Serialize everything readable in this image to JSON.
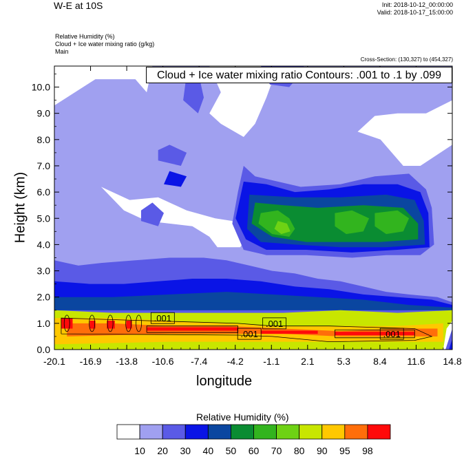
{
  "header": {
    "title": "W-E at 10S",
    "init": "Init: 2018-10-12_00:00:00",
    "valid": "Valid: 2018-10-17_15:00:00",
    "field_lines": [
      "Relative Humidity   (%)",
      "Cloud + Ice water mixing ratio   (g/kg)",
      "Main"
    ],
    "cross_section": "Cross-Section: (130,327) to (454,327)",
    "contour_note": "Cloud + Ice water mixing ratio Contours: .001 to .1 by .099"
  },
  "colors": {
    "palette": [
      "#ffffff",
      "#a0a0f0",
      "#5a5ae6",
      "#0a14e6",
      "#0a46a0",
      "#0a8c32",
      "#32b41e",
      "#6ed214",
      "#c8e600",
      "#ffc800",
      "#ff6e0a",
      "#ff0a0a"
    ],
    "contour": "#000000"
  },
  "chart_data": {
    "type": "heatmap",
    "title": "W-E at 10S",
    "xlabel": "longitude",
    "ylabel": "Height (km)",
    "xlim": [
      -20.1,
      14.8
    ],
    "ylim": [
      0.0,
      10.8
    ],
    "x_ticks": [
      "-20.1",
      "-16.9",
      "-13.8",
      "-10.6",
      "-7.4",
      "-4.2",
      "-1.1",
      "2.1",
      "5.3",
      "8.4",
      "11.6",
      "14.8"
    ],
    "y_ticks": [
      "0.0",
      "1.0",
      "2.0",
      "3.0",
      "4.0",
      "5.0",
      "6.0",
      "7.0",
      "8.0",
      "9.0",
      "10.0"
    ],
    "legend_title": "Relative Humidity  (%)",
    "legend_labels": [
      "10",
      "20",
      "30",
      "40",
      "50",
      "60",
      "70",
      "80",
      "90",
      "95",
      "98"
    ],
    "contour_labels": [
      ".001",
      ".001",
      ".001",
      ".001"
    ],
    "contour_label_positions": [
      [
        -10.6,
        1.2
      ],
      [
        -0.8,
        1.0
      ],
      [
        -3.0,
        0.6
      ],
      [
        9.5,
        0.6
      ]
    ],
    "rh_regions": [
      {
        "level": 1,
        "poly": [
          [
            -20.1,
            1.2
          ],
          [
            14.8,
            1.2
          ],
          [
            14.8,
            10.8
          ],
          [
            -20.1,
            10.8
          ]
        ]
      },
      {
        "level": 0,
        "poly": [
          [
            -20.1,
            9.3
          ],
          [
            -16.5,
            10.3
          ],
          [
            -13.0,
            10.3
          ],
          [
            -12.0,
            9.8
          ],
          [
            -11.5,
            10.8
          ],
          [
            -20.1,
            10.8
          ]
        ]
      },
      {
        "level": 0,
        "poly": [
          [
            -6.5,
            10.8
          ],
          [
            -5.5,
            9.8
          ],
          [
            -6.5,
            9.0
          ],
          [
            -5.5,
            8.6
          ],
          [
            -3.5,
            8.1
          ],
          [
            -2.5,
            8.6
          ],
          [
            -1.5,
            9.6
          ],
          [
            -0.5,
            10.8
          ]
        ]
      },
      {
        "level": 0,
        "poly": [
          [
            6.5,
            8.3
          ],
          [
            8.5,
            8.0
          ],
          [
            9.5,
            7.5
          ],
          [
            10.5,
            7.0
          ],
          [
            12.0,
            7.0
          ],
          [
            14.8,
            7.8
          ],
          [
            14.8,
            9.5
          ],
          [
            12.5,
            9.0
          ],
          [
            10.0,
            9.0
          ],
          [
            8.0,
            8.9
          ]
        ]
      },
      {
        "level": 0,
        "poly": [
          [
            -16.0,
            6.2
          ],
          [
            -13.5,
            5.7
          ],
          [
            -11.0,
            5.8
          ],
          [
            -8.5,
            5.3
          ],
          [
            -6.0,
            5.0
          ],
          [
            -4.5,
            4.9
          ],
          [
            -3.5,
            4.1
          ],
          [
            -3.8,
            3.9
          ],
          [
            -5.8,
            3.9
          ],
          [
            -6.5,
            4.3
          ],
          [
            -8.0,
            4.7
          ],
          [
            -10.0,
            4.8
          ],
          [
            -12.0,
            4.9
          ],
          [
            -14.0,
            5.3
          ]
        ]
      },
      {
        "level": 2,
        "poly": [
          [
            -20.1,
            1.2
          ],
          [
            14.8,
            1.2
          ],
          [
            14.8,
            1.8
          ],
          [
            13.5,
            2.0
          ],
          [
            11.0,
            2.1
          ],
          [
            9.0,
            2.2
          ],
          [
            7.0,
            2.4
          ],
          [
            5.0,
            2.6
          ],
          [
            3.0,
            2.7
          ],
          [
            1.0,
            2.9
          ],
          [
            -1.0,
            3.0
          ],
          [
            -3.0,
            3.2
          ],
          [
            -5.0,
            3.4
          ],
          [
            -7.0,
            3.5
          ],
          [
            -10.0,
            3.5
          ],
          [
            -13.0,
            3.4
          ],
          [
            -16.0,
            3.3
          ],
          [
            -18.0,
            3.2
          ],
          [
            -20.1,
            3.4
          ]
        ]
      },
      {
        "level": 2,
        "poly": [
          [
            -12.5,
            4.9
          ],
          [
            -11.0,
            4.7
          ],
          [
            -10.5,
            5.2
          ],
          [
            -11.5,
            5.6
          ],
          [
            -12.5,
            5.3
          ]
        ]
      },
      {
        "level": 2,
        "poly": [
          [
            -3.5,
            7.0
          ],
          [
            -2.5,
            6.6
          ],
          [
            1.5,
            6.2
          ],
          [
            5.0,
            6.3
          ],
          [
            8.0,
            6.6
          ],
          [
            11.0,
            6.7
          ],
          [
            12.5,
            6.1
          ],
          [
            13.0,
            5.4
          ],
          [
            13.2,
            4.0
          ],
          [
            12.0,
            3.6
          ],
          [
            9.0,
            3.6
          ],
          [
            6.0,
            3.5
          ],
          [
            2.0,
            3.6
          ],
          [
            -1.5,
            3.6
          ],
          [
            -3.5,
            3.8
          ],
          [
            -4.5,
            4.8
          ],
          [
            -4.0,
            6.0
          ]
        ]
      },
      {
        "level": 2,
        "poly": [
          [
            -11.0,
            7.2
          ],
          [
            -9.0,
            7.0
          ],
          [
            -8.5,
            7.5
          ],
          [
            -10.0,
            7.8
          ],
          [
            -11.0,
            7.6
          ]
        ]
      },
      {
        "level": 2,
        "poly": [
          [
            -8.8,
            9.5
          ],
          [
            -7.5,
            9.0
          ],
          [
            -7.0,
            9.6
          ],
          [
            -7.5,
            10.6
          ],
          [
            -8.5,
            10.5
          ]
        ]
      },
      {
        "level": 2,
        "poly": [
          [
            -2.0,
            10.8
          ],
          [
            -1.2,
            10.1
          ],
          [
            0.5,
            10.0
          ],
          [
            1.5,
            10.5
          ],
          [
            1.8,
            10.8
          ]
        ]
      },
      {
        "level": 3,
        "poly": [
          [
            -20.1,
            1.5
          ],
          [
            14.8,
            1.5
          ],
          [
            14.8,
            1.7
          ],
          [
            13.0,
            1.9
          ],
          [
            10.0,
            2.0
          ],
          [
            7.0,
            2.1
          ],
          [
            4.0,
            2.3
          ],
          [
            1.0,
            2.4
          ],
          [
            -2.0,
            2.6
          ],
          [
            -5.0,
            2.7
          ],
          [
            -8.0,
            2.7
          ],
          [
            -11.0,
            2.6
          ],
          [
            -14.0,
            2.5
          ],
          [
            -17.0,
            2.5
          ],
          [
            -20.1,
            2.6
          ]
        ]
      },
      {
        "level": 3,
        "poly": [
          [
            -3.5,
            6.4
          ],
          [
            -1.5,
            6.3
          ],
          [
            1.0,
            6.0
          ],
          [
            4.0,
            6.1
          ],
          [
            7.0,
            6.3
          ],
          [
            10.0,
            6.3
          ],
          [
            12.0,
            6.0
          ],
          [
            12.7,
            5.2
          ],
          [
            12.8,
            3.9
          ],
          [
            10.0,
            3.8
          ],
          [
            6.0,
            3.7
          ],
          [
            2.0,
            3.8
          ],
          [
            -1.5,
            3.8
          ],
          [
            -3.3,
            4.2
          ],
          [
            -4.2,
            5.0
          ]
        ]
      },
      {
        "level": 3,
        "poly": [
          [
            -10.5,
            6.3
          ],
          [
            -9.0,
            6.2
          ],
          [
            -8.5,
            6.6
          ],
          [
            -10.0,
            6.8
          ]
        ]
      },
      {
        "level": 4,
        "poly": [
          [
            -20.1,
            1.5
          ],
          [
            14.8,
            1.5
          ],
          [
            14.8,
            1.6
          ],
          [
            11.0,
            1.7
          ],
          [
            7.0,
            1.9
          ],
          [
            3.0,
            2.0
          ],
          [
            -1.0,
            2.1
          ],
          [
            -5.0,
            2.2
          ],
          [
            -10.0,
            2.1
          ],
          [
            -15.0,
            2.0
          ],
          [
            -20.1,
            2.0
          ]
        ]
      },
      {
        "level": 4,
        "poly": [
          [
            -3.0,
            5.9
          ],
          [
            1.0,
            5.8
          ],
          [
            5.0,
            5.8
          ],
          [
            9.0,
            5.9
          ],
          [
            11.5,
            5.7
          ],
          [
            12.3,
            4.9
          ],
          [
            12.4,
            4.0
          ],
          [
            9.0,
            3.9
          ],
          [
            5.0,
            3.9
          ],
          [
            1.0,
            4.0
          ],
          [
            -2.0,
            4.1
          ],
          [
            -3.2,
            4.6
          ]
        ]
      },
      {
        "level": 5,
        "poly": [
          [
            -2.5,
            5.6
          ],
          [
            0.0,
            5.5
          ],
          [
            3.0,
            5.4
          ],
          [
            7.0,
            5.5
          ],
          [
            10.5,
            5.4
          ],
          [
            11.8,
            4.8
          ],
          [
            11.8,
            4.2
          ],
          [
            8.5,
            4.1
          ],
          [
            5.0,
            4.1
          ],
          [
            2.0,
            4.1
          ],
          [
            -1.0,
            4.3
          ],
          [
            -2.8,
            4.8
          ]
        ]
      },
      {
        "level": 6,
        "poly": [
          [
            -2.0,
            5.2
          ],
          [
            -0.5,
            5.3
          ],
          [
            0.5,
            5.0
          ],
          [
            1.0,
            4.6
          ],
          [
            0.5,
            4.3
          ],
          [
            -1.0,
            4.4
          ],
          [
            -2.2,
            4.8
          ]
        ]
      },
      {
        "level": 6,
        "poly": [
          [
            4.5,
            5.2
          ],
          [
            6.0,
            5.3
          ],
          [
            7.5,
            5.0
          ],
          [
            7.0,
            4.5
          ],
          [
            5.5,
            4.4
          ],
          [
            4.5,
            4.7
          ]
        ]
      },
      {
        "level": 6,
        "poly": [
          [
            8.0,
            5.2
          ],
          [
            10.0,
            5.3
          ],
          [
            11.0,
            5.0
          ],
          [
            10.5,
            4.5
          ],
          [
            9.0,
            4.4
          ],
          [
            8.0,
            4.7
          ]
        ]
      },
      {
        "level": 7,
        "poly": [
          [
            -0.5,
            4.9
          ],
          [
            0.3,
            4.8
          ],
          [
            0.6,
            4.5
          ],
          [
            -0.2,
            4.4
          ],
          [
            -0.8,
            4.6
          ]
        ]
      },
      {
        "level": 8,
        "poly": [
          [
            -20.1,
            0.0
          ],
          [
            14.0,
            0.0
          ],
          [
            14.3,
            0.8
          ],
          [
            14.8,
            1.1
          ],
          [
            14.8,
            1.5
          ],
          [
            10.0,
            1.4
          ],
          [
            5.0,
            1.5
          ],
          [
            0.0,
            1.4
          ],
          [
            -5.0,
            1.4
          ],
          [
            -10.0,
            1.4
          ],
          [
            -15.0,
            1.4
          ],
          [
            -20.1,
            1.5
          ]
        ]
      },
      {
        "level": 9,
        "poly": [
          [
            -20.1,
            0.2
          ],
          [
            -10.0,
            0.3
          ],
          [
            0.0,
            0.3
          ],
          [
            10.0,
            0.3
          ],
          [
            14.0,
            0.3
          ],
          [
            14.0,
            1.0
          ],
          [
            10.0,
            0.9
          ],
          [
            5.0,
            0.9
          ],
          [
            0.0,
            0.9
          ],
          [
            -5.0,
            1.0
          ],
          [
            -10.0,
            1.1
          ],
          [
            -15.0,
            1.2
          ],
          [
            -20.1,
            1.2
          ]
        ]
      },
      {
        "level": 10,
        "poly": [
          [
            -19.0,
            0.5
          ],
          [
            -10.0,
            0.6
          ],
          [
            -5.0,
            0.6
          ],
          [
            0.0,
            0.6
          ],
          [
            5.0,
            0.5
          ],
          [
            10.0,
            0.5
          ],
          [
            13.5,
            0.5
          ],
          [
            13.5,
            0.8
          ],
          [
            10.0,
            0.8
          ],
          [
            5.0,
            0.7
          ],
          [
            0.0,
            0.8
          ],
          [
            -5.0,
            0.9
          ],
          [
            -10.0,
            0.9
          ],
          [
            -15.0,
            1.0
          ],
          [
            -19.0,
            1.0
          ]
        ]
      },
      {
        "level": 11,
        "poly": [
          [
            -12.0,
            0.72
          ],
          [
            -4.0,
            0.72
          ],
          [
            -4.0,
            0.85
          ],
          [
            -12.0,
            0.85
          ]
        ]
      },
      {
        "level": 11,
        "poly": [
          [
            -2.0,
            0.6
          ],
          [
            3.0,
            0.6
          ],
          [
            3.0,
            0.72
          ],
          [
            -2.0,
            0.72
          ]
        ]
      },
      {
        "level": 11,
        "poly": [
          [
            4.5,
            0.55
          ],
          [
            11.5,
            0.55
          ],
          [
            11.5,
            0.68
          ],
          [
            4.5,
            0.68
          ]
        ]
      },
      {
        "level": 11,
        "poly": [
          [
            -19.5,
            0.8
          ],
          [
            -18.5,
            0.8
          ],
          [
            -18.5,
            1.2
          ],
          [
            -19.5,
            1.2
          ]
        ]
      },
      {
        "level": 11,
        "poly": [
          [
            -17.0,
            0.8
          ],
          [
            -16.5,
            0.8
          ],
          [
            -16.5,
            1.1
          ],
          [
            -17.0,
            1.1
          ]
        ]
      },
      {
        "level": 11,
        "poly": [
          [
            -15.5,
            0.8
          ],
          [
            -14.8,
            0.8
          ],
          [
            -14.8,
            1.1
          ],
          [
            -15.5,
            1.1
          ]
        ]
      },
      {
        "level": 11,
        "poly": [
          [
            -13.8,
            0.8
          ],
          [
            -13.3,
            0.8
          ],
          [
            -13.3,
            1.1
          ],
          [
            -13.8,
            1.1
          ]
        ]
      },
      {
        "level": 2,
        "poly": [
          [
            14.2,
            0.0
          ],
          [
            14.8,
            0.0
          ],
          [
            14.8,
            0.8
          ]
        ]
      },
      {
        "level": 3,
        "poly": [
          [
            14.5,
            0.0
          ],
          [
            14.8,
            0.0
          ],
          [
            14.8,
            0.4
          ]
        ]
      }
    ]
  }
}
